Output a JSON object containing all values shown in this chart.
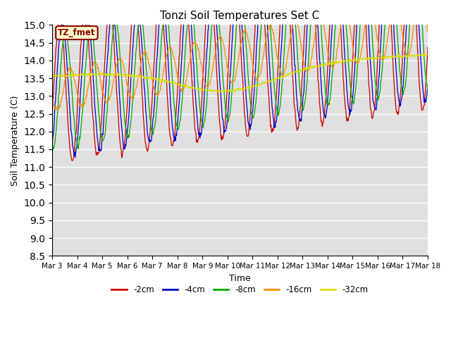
{
  "title": "Tonzi Soil Temperatures Set C",
  "xlabel": "Time",
  "ylabel": "Soil Temperature (C)",
  "ylim": [
    8.5,
    15.0
  ],
  "yticks": [
    8.5,
    9.0,
    9.5,
    10.0,
    10.5,
    11.0,
    11.5,
    12.0,
    12.5,
    13.0,
    13.5,
    14.0,
    14.5,
    15.0
  ],
  "xtick_labels": [
    "Mar 3",
    "Mar 4",
    "Mar 5",
    "Mar 6",
    "Mar 7",
    "Mar 8",
    "Mar 9",
    "Mar 10",
    "Mar 11",
    "Mar 12",
    "Mar 13",
    "Mar 14",
    "Mar 15",
    "Mar 16",
    "Mar 17",
    "Mar 18"
  ],
  "colors": {
    "-2cm": "#cc0000",
    "-4cm": "#0000cc",
    "-8cm": "#00aa00",
    "-16cm": "#ff8800",
    "-32cm": "#dddd00"
  },
  "legend_label": "TZ_fmet",
  "facecolor": "#e0e0e0"
}
